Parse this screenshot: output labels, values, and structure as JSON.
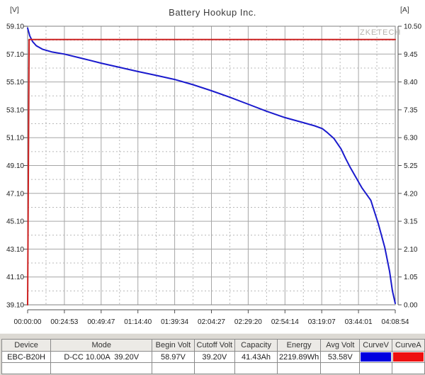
{
  "header": {
    "title": "Battery Hookup Inc.",
    "watermark": "ZKETECH",
    "left_unit": "[V]",
    "right_unit": "[A]"
  },
  "chart_data": {
    "type": "line",
    "title": "Battery Hookup Inc.",
    "duration_s": 14934,
    "x_tick_labels": [
      "00:00:00",
      "00:24:53",
      "00:49:47",
      "01:14:40",
      "01:39:34",
      "02:04:27",
      "02:29:20",
      "02:54:14",
      "03:19:07",
      "03:44:01",
      "04:08:54"
    ],
    "y_left": {
      "unit": "[V]",
      "min": 39.1,
      "max": 59.1,
      "tick_labels": [
        "59.10",
        "57.10",
        "55.10",
        "53.10",
        "51.10",
        "49.10",
        "47.10",
        "45.10",
        "43.10",
        "41.10",
        "39.10"
      ]
    },
    "y_right": {
      "unit": "[A]",
      "min": 0.0,
      "max": 10.5,
      "tick_labels": [
        "10.50",
        "9.45",
        "8.40",
        "7.35",
        "6.30",
        "5.25",
        "4.20",
        "3.15",
        "2.10",
        "1.05",
        "0.00"
      ]
    },
    "grid": {
      "major": "solid",
      "minor": "dashed",
      "minor_divisions": 2
    },
    "legend": "none",
    "series": [
      {
        "name": "CurveV",
        "axis": "left",
        "color": "#1a1acd",
        "points": [
          [
            0,
            58.97
          ],
          [
            90,
            58.4
          ],
          [
            200,
            58.0
          ],
          [
            350,
            57.7
          ],
          [
            600,
            57.45
          ],
          [
            1000,
            57.25
          ],
          [
            1494,
            57.1
          ],
          [
            2240,
            56.78
          ],
          [
            2987,
            56.45
          ],
          [
            3734,
            56.15
          ],
          [
            4480,
            55.85
          ],
          [
            5227,
            55.57
          ],
          [
            5974,
            55.28
          ],
          [
            6720,
            54.9
          ],
          [
            7467,
            54.47
          ],
          [
            8214,
            54.0
          ],
          [
            8960,
            53.5
          ],
          [
            9707,
            53.0
          ],
          [
            10454,
            52.54
          ],
          [
            11200,
            52.18
          ],
          [
            11660,
            51.95
          ],
          [
            11970,
            51.75
          ],
          [
            12150,
            51.5
          ],
          [
            12440,
            51.05
          ],
          [
            12730,
            50.3
          ],
          [
            12920,
            49.6
          ],
          [
            13110,
            48.95
          ],
          [
            13580,
            47.5
          ],
          [
            13940,
            46.6
          ],
          [
            14250,
            44.9
          ],
          [
            14510,
            43.2
          ],
          [
            14705,
            41.5
          ],
          [
            14820,
            40.1
          ],
          [
            14934,
            39.2
          ]
        ]
      },
      {
        "name": "CurveA",
        "axis": "right",
        "color": "#cc2020",
        "points": [
          [
            0,
            0.0
          ],
          [
            60,
            10.0
          ],
          [
            14934,
            10.0
          ]
        ]
      }
    ]
  },
  "table": {
    "headers": [
      "Device",
      "Mode",
      "Begin Volt",
      "Cutoff Volt",
      "Capacity",
      "Energy",
      "Avg Volt",
      "CurveV",
      "CurveA"
    ],
    "row": [
      "EBC-B20H",
      "D-CC 10.00A  39.20V",
      "58.97V",
      "39.20V",
      "41.43Ah",
      "2219.89Wh",
      "53.58V",
      "",
      ""
    ],
    "swatch_columns": {
      "7": "#0000e0",
      "8": "#ee1010"
    },
    "curve_v_color": "#0000e0",
    "curve_a_color": "#ee1010"
  }
}
